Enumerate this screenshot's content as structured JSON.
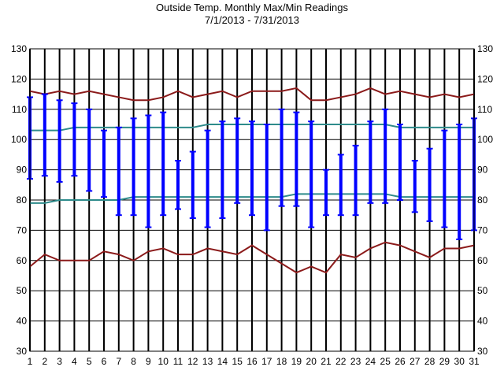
{
  "chart_data": {
    "type": "line",
    "title": "Outside Temp. Monthly Max/Min Readings",
    "subtitle": "7/1/2013 - 7/31/2013",
    "xlabel": "",
    "ylabel": "",
    "ylim": [
      30,
      130
    ],
    "yticks": [
      30,
      40,
      50,
      60,
      70,
      80,
      90,
      100,
      110,
      120,
      130
    ],
    "x": [
      1,
      2,
      3,
      4,
      5,
      6,
      7,
      8,
      9,
      10,
      11,
      12,
      13,
      14,
      15,
      16,
      17,
      18,
      19,
      20,
      21,
      22,
      23,
      24,
      25,
      26,
      27,
      28,
      29,
      30,
      31
    ],
    "grid": true,
    "legend": "none",
    "series": [
      {
        "color": "#8b1a1a",
        "values": [
          116,
          115,
          116,
          115,
          116,
          115,
          114,
          113,
          113,
          114,
          116,
          114,
          115,
          116,
          114,
          116,
          116,
          116,
          117,
          113,
          113,
          114,
          115,
          117,
          115,
          116,
          115,
          114,
          115,
          114,
          115
        ]
      },
      {
        "color": "#8b1a1a",
        "values": [
          58,
          62,
          60,
          60,
          60,
          63,
          62,
          60,
          63,
          64,
          62,
          62,
          64,
          63,
          62,
          65,
          62,
          59,
          56,
          58,
          56,
          62,
          61,
          64,
          66,
          65,
          63,
          61,
          64,
          64,
          65
        ]
      },
      {
        "color": "#2e8b8b",
        "values": [
          103,
          103,
          103,
          104,
          104,
          104,
          104,
          104,
          104,
          104,
          104,
          104,
          105,
          105,
          105,
          105,
          105,
          105,
          105,
          105,
          105,
          105,
          105,
          105,
          105,
          104,
          104,
          104,
          104,
          104,
          104
        ]
      },
      {
        "color": "#2e8b8b",
        "values": [
          79,
          79,
          80,
          80,
          80,
          80,
          80,
          81,
          81,
          81,
          81,
          81,
          81,
          81,
          81,
          81,
          81,
          81,
          82,
          82,
          82,
          82,
          82,
          82,
          82,
          81,
          81,
          81,
          81,
          81,
          81
        ]
      },
      {
        "color": "#0000ff",
        "type": "range",
        "high": [
          114,
          115,
          113,
          112,
          110,
          103,
          104,
          107,
          108,
          109,
          93,
          96,
          103,
          106,
          107,
          106,
          105,
          110,
          109,
          106,
          90,
          95,
          98,
          106,
          110,
          105,
          93,
          97,
          103,
          105,
          107
        ],
        "low": [
          87,
          88,
          86,
          88,
          83,
          81,
          75,
          75,
          71,
          75,
          77,
          74,
          71,
          74,
          79,
          75,
          70,
          78,
          78,
          71,
          75,
          75,
          75,
          79,
          79,
          80,
          76,
          73,
          71,
          67,
          70
        ]
      }
    ]
  }
}
